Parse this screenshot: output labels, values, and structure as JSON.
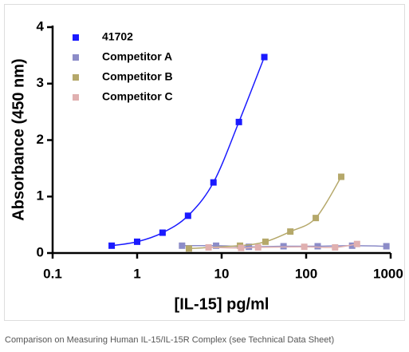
{
  "chart_data": {
    "type": "scatter",
    "caption": "Comparison on Measuring Human IL-15/IL-15R Complex (see Technical Data Sheet)",
    "x_label": "[IL-15] pg/ml",
    "y_label": "Absorbance (450 nm)",
    "xscale": "log",
    "xlim": [
      0.1,
      1000
    ],
    "xticks": [
      0.1,
      1,
      10,
      100,
      1000
    ],
    "ylim": [
      0,
      4
    ],
    "yticks": [
      0,
      1,
      2,
      3,
      4
    ],
    "legend": "upper left",
    "series": [
      {
        "name": "41702",
        "color": "#1a1aff",
        "x": [
          0.5,
          1,
          2,
          4,
          8,
          16,
          32
        ],
        "values": [
          0.13,
          0.2,
          0.36,
          0.66,
          1.25,
          2.32,
          3.47
        ]
      },
      {
        "name": "Competitor A",
        "color": "#8c8cc8",
        "x": [
          3.4,
          8.6,
          21,
          54,
          137,
          350,
          890
        ],
        "values": [
          0.13,
          0.13,
          0.11,
          0.12,
          0.12,
          0.13,
          0.12
        ]
      },
      {
        "name": "Competitor B",
        "color": "#b5a86a",
        "x": [
          4.1,
          16.5,
          33,
          65,
          130,
          260
        ],
        "values": [
          0.08,
          0.13,
          0.2,
          0.38,
          0.62,
          1.35
        ]
      },
      {
        "name": "Competitor C",
        "color": "#e0b0b0",
        "x": [
          7,
          17,
          27,
          95,
          220,
          400
        ],
        "values": [
          0.1,
          0.09,
          0.1,
          0.11,
          0.1,
          0.16
        ]
      }
    ]
  }
}
